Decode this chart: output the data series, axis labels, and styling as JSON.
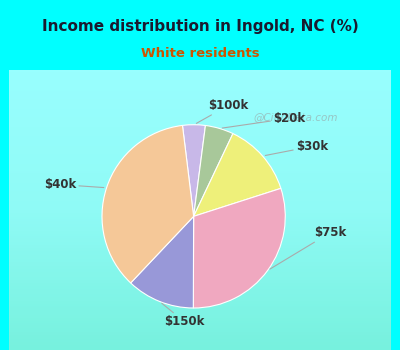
{
  "title": "Income distribution in Ingold, NC (%)",
  "subtitle": "White residents",
  "title_color": "#1a1a2e",
  "subtitle_color": "#cc5500",
  "background_color": "#00ffff",
  "labels": [
    "$100k",
    "$20k",
    "$30k",
    "$75k",
    "$150k",
    "$40k"
  ],
  "values": [
    4,
    5,
    13,
    30,
    12,
    36
  ],
  "colors": [
    "#c8b8e8",
    "#a8c89a",
    "#eef07a",
    "#f0a8c0",
    "#9898d8",
    "#f5c898"
  ],
  "startangle": 97,
  "label_fontsize": 8.5,
  "watermark": "@City-Data.com"
}
